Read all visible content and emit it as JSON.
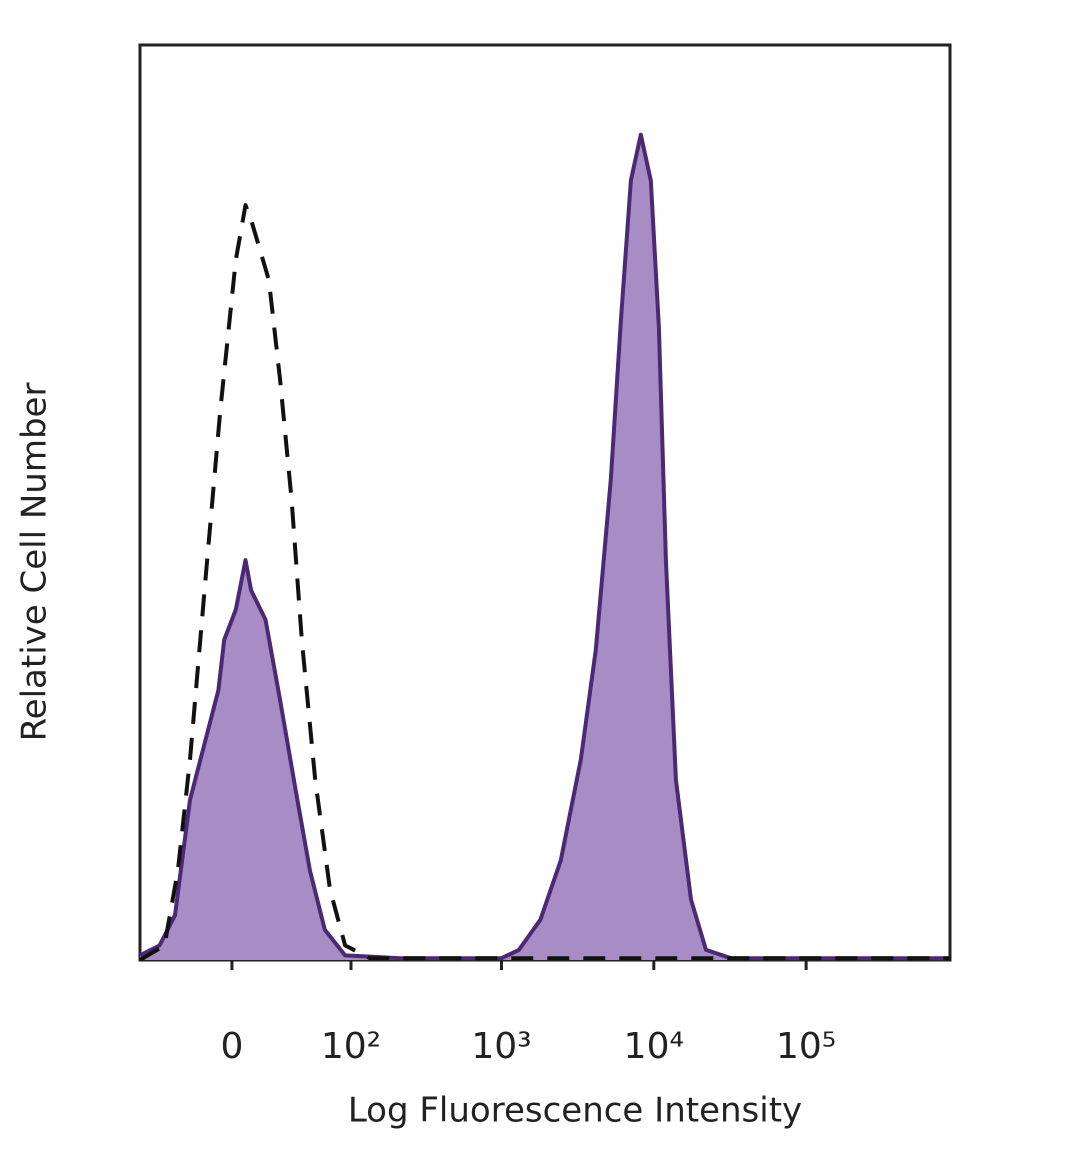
{
  "chart_data": {
    "type": "histogram-overlay",
    "xlabel": "Log Fluorescence Intensity",
    "ylabel": "Relative Cell Number",
    "xscale": "asinh",
    "xlim": [
      -64,
      880000
    ],
    "ylim": [
      0,
      100
    ],
    "xticks": [
      0,
      {
        "value": 100,
        "label": "10²"
      },
      {
        "value": 1000,
        "label": "10³"
      },
      {
        "value": 10000,
        "label": "10⁴"
      },
      {
        "value": 100000,
        "label": "10⁵"
      }
    ],
    "series": [
      {
        "color": "#4b2a73",
        "fill": "#a88cc6",
        "dash": false,
        "x": [
          -64,
          -45,
          -33,
          -23,
          -14,
          -7,
          -4,
          2,
          7,
          10,
          18,
          27,
          38,
          50,
          65,
          91,
          215,
          1000,
          1300,
          1800,
          2450,
          3315,
          4160,
          5220,
          6077,
          7070,
          8218,
          9560,
          10800,
          12000,
          13970,
          17540,
          22000,
          32000,
          880000
        ],
        "values": [
          0.5,
          1.6,
          4.9,
          17.5,
          24,
          29.5,
          35,
          38.3,
          43.7,
          40.4,
          37.2,
          28.4,
          18.6,
          9.8,
          3.3,
          0.5,
          0.2,
          0.2,
          1.1,
          4.4,
          10.9,
          21.9,
          33.9,
          52.5,
          69.9,
          85.2,
          90.2,
          85.2,
          69.1,
          43.7,
          19.7,
          6.6,
          1.1,
          0.2,
          0.2
        ]
      },
      {
        "color": "#111111",
        "fill": "none",
        "dash": true,
        "x": [
          -64,
          -41,
          -31,
          -23,
          -14,
          -6,
          2,
          7,
          10,
          20,
          27,
          35,
          43,
          55,
          71,
          91,
          135,
          880000
        ],
        "values": [
          0,
          1.6,
          9.8,
          21.9,
          41.5,
          60.1,
          76.5,
          82.5,
          80.9,
          74.3,
          63.4,
          50.3,
          35,
          19.7,
          7.7,
          1.6,
          0.2,
          0.2
        ]
      }
    ]
  }
}
